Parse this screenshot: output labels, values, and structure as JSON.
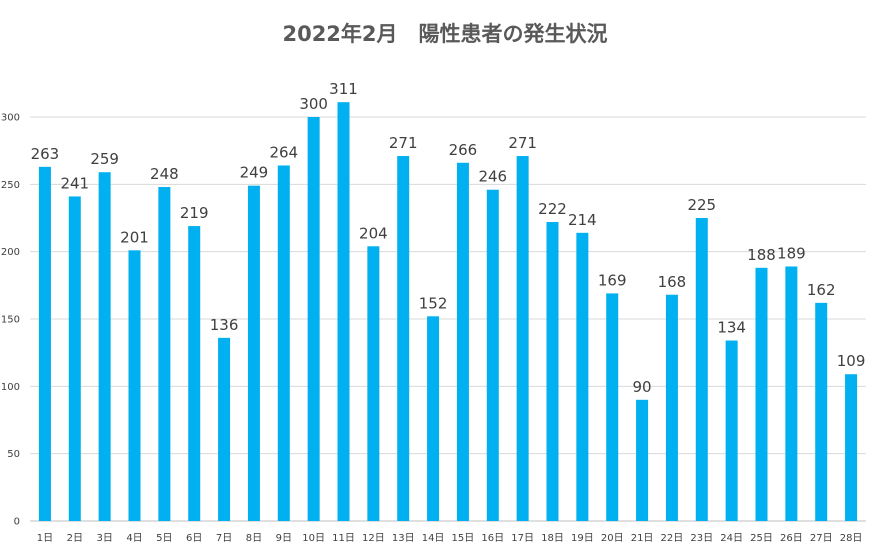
{
  "chart_data": {
    "type": "bar",
    "title": "2022年2月　陽性患者の発生状況",
    "xlabel": "",
    "ylabel": "",
    "categories": [
      "1日",
      "2日",
      "3日",
      "4日",
      "5日",
      "6日",
      "7日",
      "8日",
      "9日",
      "10日",
      "11日",
      "12日",
      "13日",
      "14日",
      "15日",
      "16日",
      "17日",
      "18日",
      "19日",
      "20日",
      "21日",
      "22日",
      "23日",
      "24日",
      "25日",
      "26日",
      "27日",
      "28日"
    ],
    "values": [
      263,
      241,
      259,
      201,
      248,
      219,
      136,
      249,
      264,
      300,
      311,
      204,
      271,
      152,
      266,
      246,
      271,
      222,
      214,
      169,
      90,
      168,
      225,
      134,
      188,
      189,
      162,
      109
    ],
    "ylim": [
      0,
      300
    ],
    "yticks": [
      0,
      50,
      100,
      150,
      200,
      250,
      300
    ],
    "grid": true,
    "data_labels": true,
    "bar_color": "#00B0F0",
    "grid_color": "#D9D9D9"
  }
}
